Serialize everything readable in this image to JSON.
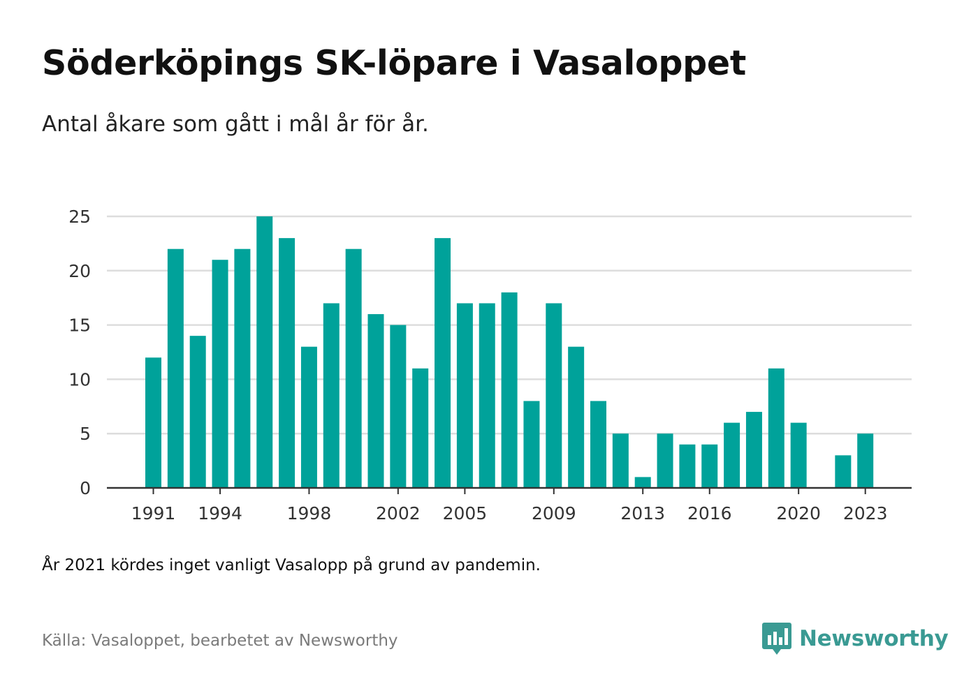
{
  "title": "Söderköpings SK-löpare i Vasaloppet",
  "subtitle": "Antal åkare som gått i mål år för år.",
  "note": "År 2021 kördes inget vanligt Vasalopp på grund av pandemin.",
  "source": "Källa: Vasaloppet, bearbetet av Newsworthy",
  "brand": {
    "name": "Newsworthy",
    "logo_icon": "newsworthy-logo-icon"
  },
  "colors": {
    "bar": "#00a29a",
    "grid": "#dddddd",
    "axis": "#333333",
    "brand": "#3a9a93"
  },
  "chart_data": {
    "type": "bar",
    "x": [
      1991,
      1992,
      1993,
      1994,
      1995,
      1996,
      1997,
      1998,
      1999,
      2000,
      2001,
      2002,
      2003,
      2004,
      2005,
      2006,
      2007,
      2008,
      2009,
      2010,
      2011,
      2012,
      2013,
      2014,
      2015,
      2016,
      2017,
      2018,
      2019,
      2020,
      2021,
      2022,
      2023
    ],
    "values": [
      12,
      22,
      14,
      21,
      22,
      25,
      23,
      13,
      17,
      22,
      16,
      15,
      11,
      23,
      17,
      17,
      18,
      8,
      17,
      13,
      8,
      5,
      1,
      5,
      4,
      4,
      6,
      7,
      11,
      6,
      null,
      3,
      5
    ],
    "x_tick_labels": [
      "1991",
      "1994",
      "1998",
      "2002",
      "2005",
      "2009",
      "2013",
      "2016",
      "2020",
      "2023"
    ],
    "y_ticks": [
      0,
      5,
      10,
      15,
      20,
      25
    ],
    "ylim": [
      0,
      25
    ],
    "grid": true,
    "legend": "none"
  }
}
